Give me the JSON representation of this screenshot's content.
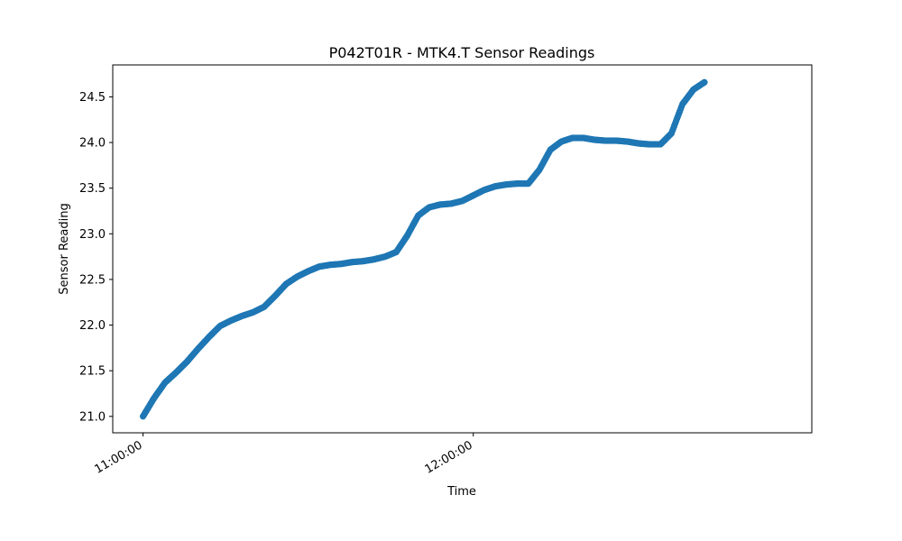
{
  "chart_data": {
    "type": "scatter",
    "title": "P042T01R - MTK4.T Sensor Readings",
    "xlabel": "Time",
    "ylabel": "Sensor Reading",
    "x_ticks": [
      "11:00:00",
      "12:00:00"
    ],
    "x_range": [
      "10:54:30",
      "13:01:30"
    ],
    "ylim": [
      20.82,
      24.85
    ],
    "y_ticks": [
      21.0,
      21.5,
      22.0,
      22.5,
      23.0,
      23.5,
      24.0,
      24.5
    ],
    "grid": false,
    "marker_color": "#1f77b4",
    "series": [
      {
        "x": [
          "11:00:00",
          "11:02:00",
          "11:04:00",
          "11:06:00",
          "11:08:00",
          "11:10:00",
          "11:12:00",
          "11:14:00",
          "11:16:00",
          "11:18:00",
          "11:20:00",
          "11:22:00",
          "11:24:00",
          "11:26:00",
          "11:28:00",
          "11:30:00",
          "11:32:00",
          "11:34:00",
          "11:36:00",
          "11:38:00",
          "11:40:00",
          "11:42:00",
          "11:44:00",
          "11:46:00",
          "11:48:00",
          "11:50:00",
          "11:52:00",
          "11:54:00",
          "11:56:00",
          "11:58:00",
          "12:00:00",
          "12:02:00",
          "12:04:00",
          "12:06:00",
          "12:08:00",
          "12:10:00",
          "12:12:00",
          "12:14:00",
          "12:16:00",
          "12:18:00",
          "12:20:00",
          "12:22:00",
          "12:24:00",
          "12:26:00",
          "12:28:00",
          "12:30:00",
          "12:32:00",
          "12:34:00",
          "12:36:00",
          "12:38:00",
          "12:40:00",
          "12:42:00"
        ],
        "values": [
          21.0,
          21.2,
          21.37,
          21.48,
          21.6,
          21.74,
          21.87,
          21.99,
          22.05,
          22.1,
          22.14,
          22.2,
          22.32,
          22.45,
          22.53,
          22.59,
          22.64,
          22.66,
          22.67,
          22.69,
          22.7,
          22.72,
          22.75,
          22.8,
          22.98,
          23.2,
          23.29,
          23.32,
          23.33,
          23.36,
          23.42,
          23.48,
          23.52,
          23.54,
          23.55,
          23.55,
          23.7,
          23.92,
          24.01,
          24.05,
          24.05,
          24.03,
          24.02,
          24.02,
          24.01,
          23.99,
          23.98,
          23.98,
          24.1,
          24.42,
          24.58,
          24.66
        ]
      }
    ]
  }
}
